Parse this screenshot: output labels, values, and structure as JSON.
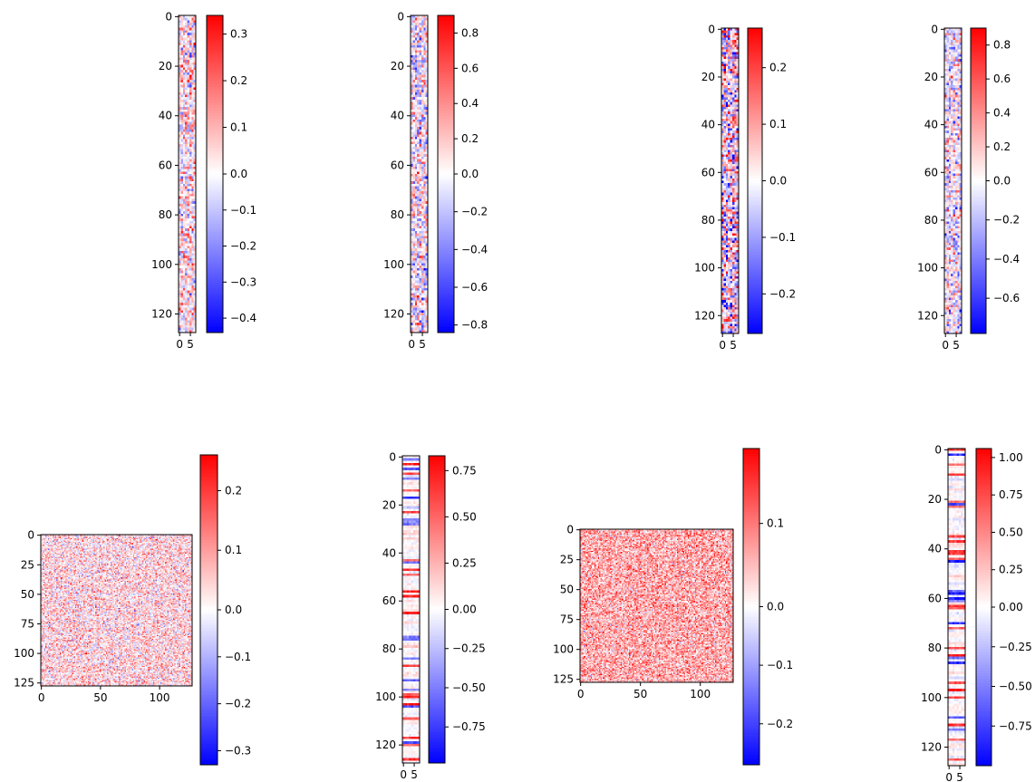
{
  "figure": {
    "grid": "2x4",
    "cmap": {
      "low": "#0000ff",
      "mid": "#ffffff",
      "high": "#ff0000"
    }
  },
  "chart_data": [
    {
      "type": "heatmap",
      "rows": 128,
      "cols": 8,
      "ytick_labels": [
        "0",
        "20",
        "40",
        "60",
        "80",
        "100",
        "120"
      ],
      "xtick_labels": [
        "0",
        "5"
      ],
      "clim": [
        -0.44,
        0.34
      ],
      "colorbar_ticks": [
        "0.3",
        "0.2",
        "0.1",
        "0.0",
        "−0.1",
        "−0.2",
        "−0.3",
        "−0.4"
      ],
      "colorbar_tick_values": [
        0.3,
        0.2,
        0.1,
        0.0,
        -0.1,
        -0.2,
        -0.3,
        -0.4
      ],
      "pattern": "dense",
      "bias": 0.05
    },
    {
      "type": "heatmap",
      "rows": 128,
      "cols": 8,
      "ytick_labels": [
        "0",
        "20",
        "40",
        "60",
        "80",
        "100",
        "120"
      ],
      "xtick_labels": [
        "0",
        "5"
      ],
      "clim": [
        -0.84,
        0.9
      ],
      "colorbar_ticks": [
        "0.8",
        "0.6",
        "0.4",
        "0.2",
        "0.0",
        "−0.2",
        "−0.4",
        "−0.6",
        "−0.8"
      ],
      "colorbar_tick_values": [
        0.8,
        0.6,
        0.4,
        0.2,
        0.0,
        -0.2,
        -0.4,
        -0.6,
        -0.8
      ],
      "pattern": "dense",
      "bias": 0.0
    },
    {
      "type": "heatmap",
      "rows": 128,
      "cols": 8,
      "ytick_labels": [
        "0",
        "20",
        "40",
        "60",
        "80",
        "100",
        "120"
      ],
      "xtick_labels": [
        "0",
        "5"
      ],
      "clim": [
        -0.27,
        0.27
      ],
      "colorbar_ticks": [
        "0.2",
        "0.1",
        "0.0",
        "−0.1",
        "−0.2"
      ],
      "colorbar_tick_values": [
        0.2,
        0.1,
        0.0,
        -0.1,
        -0.2
      ],
      "pattern": "strong",
      "bias": 0.0
    },
    {
      "type": "heatmap",
      "rows": 128,
      "cols": 8,
      "ytick_labels": [
        "0",
        "20",
        "40",
        "60",
        "80",
        "100",
        "120"
      ],
      "xtick_labels": [
        "0",
        "5"
      ],
      "clim": [
        -0.78,
        0.9
      ],
      "colorbar_ticks": [
        "0.8",
        "0.6",
        "0.4",
        "0.2",
        "0.0",
        "−0.2",
        "−0.4",
        "−0.6"
      ],
      "colorbar_tick_values": [
        0.8,
        0.6,
        0.4,
        0.2,
        0.0,
        -0.2,
        -0.4,
        -0.6
      ],
      "pattern": "dense",
      "bias": 0.0
    },
    {
      "type": "heatmap",
      "rows": 128,
      "cols": 128,
      "ytick_labels": [
        "0",
        "25",
        "50",
        "75",
        "100",
        "125"
      ],
      "xtick_labels": [
        "0",
        "50",
        "100"
      ],
      "clim": [
        -0.33,
        0.26
      ],
      "colorbar_ticks": [
        "0.2",
        "0.1",
        "0.0",
        "−0.1",
        "−0.2",
        "−0.3"
      ],
      "colorbar_tick_values": [
        0.2,
        0.1,
        0.0,
        -0.1,
        -0.2,
        -0.3
      ],
      "pattern": "square",
      "bias": 0.03
    },
    {
      "type": "heatmap",
      "rows": 128,
      "cols": 8,
      "ytick_labels": [
        "0",
        "20",
        "40",
        "60",
        "80",
        "100",
        "120"
      ],
      "xtick_labels": [
        "0",
        "5"
      ],
      "clim": [
        -0.98,
        0.83
      ],
      "colorbar_ticks": [
        "0.75",
        "0.50",
        "0.25",
        "0.00",
        "−0.25",
        "−0.50",
        "−0.75"
      ],
      "colorbar_tick_values": [
        0.75,
        0.5,
        0.25,
        0.0,
        -0.25,
        -0.5,
        -0.75
      ],
      "pattern": "rows",
      "bias": 0.0
    },
    {
      "type": "heatmap",
      "rows": 128,
      "cols": 128,
      "ytick_labels": [
        "0",
        "25",
        "50",
        "75",
        "100",
        "125"
      ],
      "xtick_labels": [
        "0",
        "50",
        "100"
      ],
      "clim": [
        -0.27,
        0.19
      ],
      "colorbar_ticks": [
        "0.1",
        "0.0",
        "−0.1",
        "−0.2"
      ],
      "colorbar_tick_values": [
        0.1,
        0.0,
        -0.1,
        -0.2
      ],
      "pattern": "square",
      "bias": 0.06
    },
    {
      "type": "heatmap",
      "rows": 128,
      "cols": 8,
      "ytick_labels": [
        "0",
        "20",
        "40",
        "60",
        "80",
        "100",
        "120"
      ],
      "xtick_labels": [
        "0",
        "5"
      ],
      "clim": [
        -1.0,
        1.06
      ],
      "colorbar_ticks": [
        "1.00",
        "0.75",
        "0.50",
        "0.25",
        "0.00",
        "−0.25",
        "−0.50",
        "−0.75"
      ],
      "colorbar_tick_values": [
        1.0,
        0.75,
        0.5,
        0.25,
        0.0,
        -0.25,
        -0.5,
        -0.75
      ],
      "pattern": "rows",
      "bias": 0.0
    }
  ]
}
